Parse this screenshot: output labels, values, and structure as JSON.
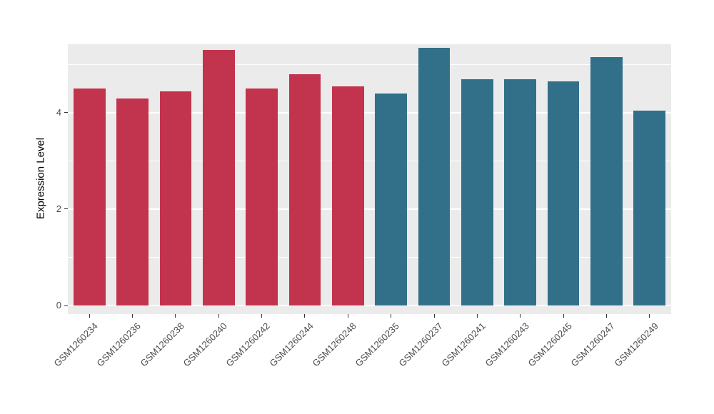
{
  "figure": {
    "background": "#FFFFFF"
  },
  "chart_data": {
    "type": "bar",
    "title": "",
    "xlabel": "",
    "ylabel": "Expression Level",
    "categories": [
      "GSM1260234",
      "GSM1260236",
      "GSM1260238",
      "GSM1260240",
      "GSM1260242",
      "GSM1260244",
      "GSM1260248",
      "GSM1260235",
      "GSM1260237",
      "GSM1260241",
      "GSM1260243",
      "GSM1260245",
      "GSM1260247",
      "GSM1260249"
    ],
    "values": [
      4.5,
      4.3,
      4.45,
      5.3,
      4.5,
      4.8,
      4.55,
      4.4,
      5.35,
      4.7,
      4.7,
      4.65,
      5.15,
      4.05
    ],
    "groups": [
      "red",
      "red",
      "red",
      "red",
      "red",
      "red",
      "red",
      "teal",
      "teal",
      "teal",
      "teal",
      "teal",
      "teal",
      "teal"
    ],
    "group_colors": {
      "red": "#C2334D",
      "teal": "#32708A"
    },
    "ylim": [
      0,
      5.42
    ],
    "yticks": [
      0,
      2,
      4
    ],
    "minor_ticks": [
      1,
      3,
      5
    ],
    "grid": "on",
    "legend": "none",
    "panel_background": "#EBEBEB",
    "gridline_color": "#FFFFFF",
    "tick_label_color": "#4D4D4D",
    "axis_title_color": "#000000"
  }
}
